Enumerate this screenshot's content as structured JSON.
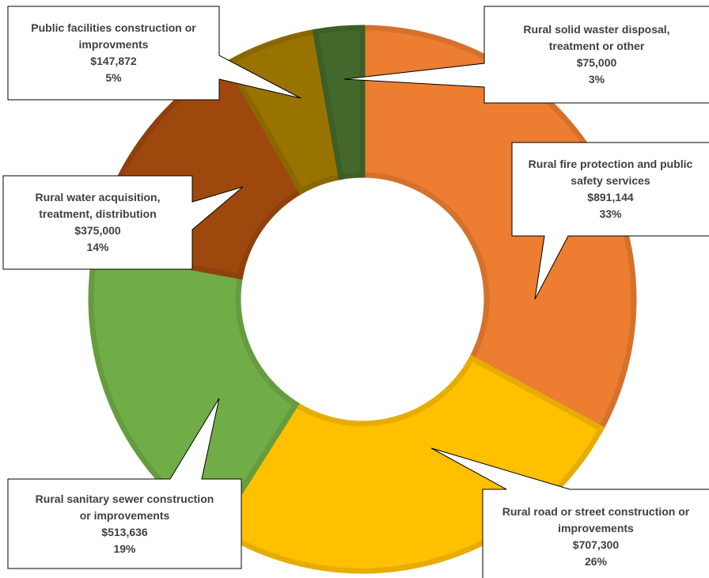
{
  "chart_data": {
    "type": "donut",
    "categories": [
      "Rural fire protection and public safety services",
      "Rural road or street construction or improvements",
      "Rural sanitary sewer construction or improvements",
      "Rural water acquisition, treatment, distribution",
      "Public facilities construction or improvments",
      "Rural solid waster disposal, treatment or other"
    ],
    "values": [
      891144,
      707300,
      513636,
      375000,
      147872,
      75000
    ],
    "value_labels": [
      "$891,144",
      "$707,300",
      "$513,636",
      "$375,000",
      "$147,872",
      "$75,000"
    ],
    "percent_labels": [
      "33%",
      "26%",
      "19%",
      "14%",
      "5%",
      "3%"
    ],
    "colors": [
      "#ED7D31",
      "#FFC000",
      "#70AD47",
      "#9E480E",
      "#997300",
      "#43682B"
    ]
  }
}
